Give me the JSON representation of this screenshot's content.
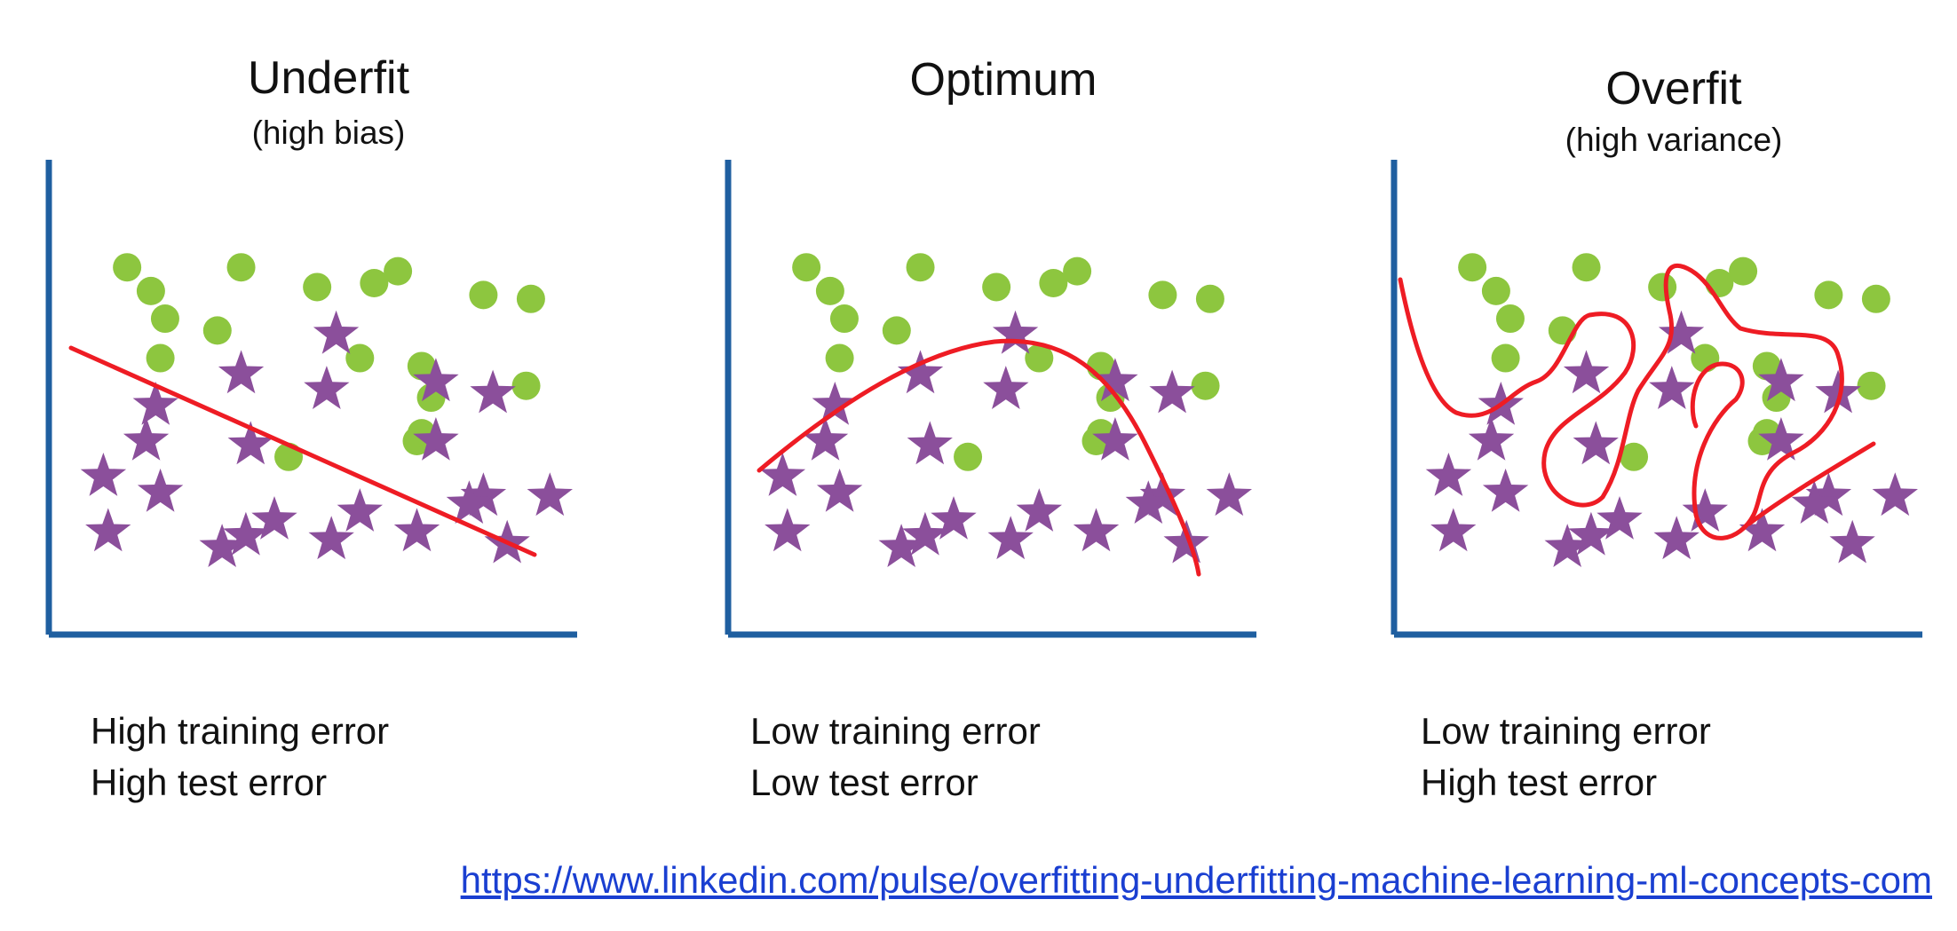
{
  "colors": {
    "axis": "#1f5fa0",
    "curve": "#ee1c24",
    "circle": "#8dc63f",
    "star": "#8b4f9b"
  },
  "marker_legend": {
    "circle": "green-circle",
    "star": "purple-star"
  },
  "panels": [
    {
      "id": "underfit",
      "title": "Underfit",
      "subtitle": "(high bias)",
      "training_error": "High training error",
      "test_error": "High test error",
      "curve_type": "straight-line",
      "circles": [
        [
          9,
          84
        ],
        [
          33,
          84
        ],
        [
          17,
          71
        ],
        [
          49,
          79
        ],
        [
          61,
          80
        ],
        [
          66,
          83
        ],
        [
          84,
          77
        ],
        [
          94,
          76
        ],
        [
          14,
          78
        ],
        [
          28,
          68
        ],
        [
          16,
          61
        ],
        [
          58,
          61
        ],
        [
          71,
          59
        ],
        [
          93,
          54
        ],
        [
          43,
          36
        ],
        [
          70,
          40
        ],
        [
          73,
          51
        ],
        [
          71,
          42
        ]
      ],
      "stars": [
        [
          4,
          31
        ],
        [
          15,
          49
        ],
        [
          33,
          57
        ],
        [
          53,
          67
        ],
        [
          74,
          55
        ],
        [
          13,
          40
        ],
        [
          51,
          53
        ],
        [
          16,
          27
        ],
        [
          35,
          39
        ],
        [
          74,
          40
        ],
        [
          84,
          26
        ],
        [
          40,
          20
        ],
        [
          58,
          22
        ],
        [
          81,
          24
        ],
        [
          5,
          17
        ],
        [
          34,
          16
        ],
        [
          52,
          15
        ],
        [
          70,
          17
        ],
        [
          89,
          14
        ],
        [
          98,
          26
        ],
        [
          86,
          52
        ],
        [
          29,
          13
        ]
      ]
    },
    {
      "id": "optimum",
      "title": "Optimum",
      "subtitle": "",
      "training_error": "Low training error",
      "test_error": "Low test error",
      "curve_type": "parabola",
      "circles": [
        [
          9,
          84
        ],
        [
          33,
          84
        ],
        [
          17,
          71
        ],
        [
          49,
          79
        ],
        [
          61,
          80
        ],
        [
          66,
          83
        ],
        [
          84,
          77
        ],
        [
          94,
          76
        ],
        [
          14,
          78
        ],
        [
          28,
          68
        ],
        [
          16,
          61
        ],
        [
          58,
          61
        ],
        [
          71,
          59
        ],
        [
          93,
          54
        ],
        [
          43,
          36
        ],
        [
          70,
          40
        ],
        [
          73,
          51
        ],
        [
          71,
          42
        ]
      ],
      "stars": [
        [
          4,
          31
        ],
        [
          15,
          49
        ],
        [
          33,
          57
        ],
        [
          53,
          67
        ],
        [
          74,
          55
        ],
        [
          13,
          40
        ],
        [
          51,
          53
        ],
        [
          16,
          27
        ],
        [
          35,
          39
        ],
        [
          74,
          40
        ],
        [
          84,
          26
        ],
        [
          40,
          20
        ],
        [
          58,
          22
        ],
        [
          81,
          24
        ],
        [
          5,
          17
        ],
        [
          34,
          16
        ],
        [
          52,
          15
        ],
        [
          70,
          17
        ],
        [
          89,
          14
        ],
        [
          98,
          26
        ],
        [
          86,
          52
        ],
        [
          29,
          13
        ]
      ]
    },
    {
      "id": "overfit",
      "title": "Overfit",
      "subtitle": "(high variance)",
      "training_error": "Low training error",
      "test_error": "High test error",
      "curve_type": "wiggly",
      "circles": [
        [
          9,
          84
        ],
        [
          33,
          84
        ],
        [
          17,
          71
        ],
        [
          49,
          79
        ],
        [
          61,
          80
        ],
        [
          66,
          83
        ],
        [
          84,
          77
        ],
        [
          94,
          76
        ],
        [
          14,
          78
        ],
        [
          28,
          68
        ],
        [
          16,
          61
        ],
        [
          58,
          61
        ],
        [
          71,
          59
        ],
        [
          93,
          54
        ],
        [
          43,
          36
        ],
        [
          70,
          40
        ],
        [
          73,
          51
        ],
        [
          71,
          42
        ]
      ],
      "stars": [
        [
          4,
          31
        ],
        [
          15,
          49
        ],
        [
          33,
          57
        ],
        [
          53,
          67
        ],
        [
          74,
          55
        ],
        [
          13,
          40
        ],
        [
          51,
          53
        ],
        [
          16,
          27
        ],
        [
          35,
          39
        ],
        [
          74,
          40
        ],
        [
          84,
          26
        ],
        [
          40,
          20
        ],
        [
          58,
          22
        ],
        [
          81,
          24
        ],
        [
          5,
          17
        ],
        [
          34,
          16
        ],
        [
          52,
          15
        ],
        [
          70,
          17
        ],
        [
          89,
          14
        ],
        [
          98,
          26
        ],
        [
          86,
          52
        ],
        [
          29,
          13
        ]
      ]
    }
  ],
  "source_link": "https://www.linkedin.com/pulse/overfitting-underfitting-machine-learning-ml-concepts-com"
}
